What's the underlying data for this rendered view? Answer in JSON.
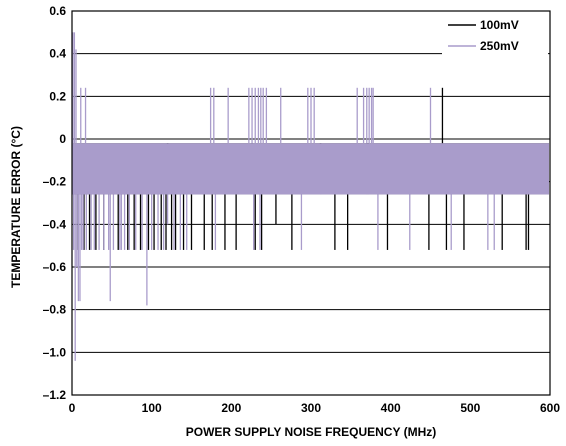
{
  "chart_data": {
    "type": "line",
    "xlabel": "POWER SUPPLY NOISE FREQUENCY (MHz)",
    "ylabel": "TEMPERATURE ERROR (°C)",
    "xlim": [
      0,
      600
    ],
    "ylim": [
      -1.2,
      0.6
    ],
    "xticks": [
      0,
      100,
      200,
      300,
      400,
      500,
      600
    ],
    "xtick_labels": [
      "0",
      "100",
      "200",
      "300",
      "400",
      "500",
      "600"
    ],
    "yticks": [
      0.6,
      0.4,
      0.2,
      0,
      -0.2,
      -0.4,
      -0.6,
      -0.8,
      -1.0,
      -1.2
    ],
    "ytick_labels": [
      "0.6",
      "0.4",
      "0.2",
      "0",
      "–0.2",
      "–0.4",
      "–0.6",
      "–0.8",
      "–1.0",
      "–1.2"
    ],
    "grid": "horizontal",
    "legend_position": "top-right",
    "band": {
      "upper": -0.02,
      "lower": -0.26,
      "x_start": 0,
      "x_end": 600
    },
    "series": [
      {
        "name": "100mV",
        "color": "#000000",
        "spikes_down": [
          {
            "x": 8,
            "y": -0.52
          },
          {
            "x": 15,
            "y": -0.52
          },
          {
            "x": 22,
            "y": -0.52
          },
          {
            "x": 30,
            "y": -0.52
          },
          {
            "x": 40,
            "y": -0.52
          },
          {
            "x": 58,
            "y": -0.52
          },
          {
            "x": 70,
            "y": -0.52
          },
          {
            "x": 78,
            "y": -0.52
          },
          {
            "x": 86,
            "y": -0.52
          },
          {
            "x": 96,
            "y": -0.52
          },
          {
            "x": 103,
            "y": -0.52
          },
          {
            "x": 112,
            "y": -0.52
          },
          {
            "x": 118,
            "y": -0.52
          },
          {
            "x": 125,
            "y": -0.52
          },
          {
            "x": 130,
            "y": -0.52
          },
          {
            "x": 140,
            "y": -0.52
          },
          {
            "x": 150,
            "y": -0.52
          },
          {
            "x": 166,
            "y": -0.52
          },
          {
            "x": 176,
            "y": -0.52
          },
          {
            "x": 192,
            "y": -0.52
          },
          {
            "x": 206,
            "y": -0.52
          },
          {
            "x": 230,
            "y": -0.52
          },
          {
            "x": 238,
            "y": -0.52
          },
          {
            "x": 256,
            "y": -0.4
          },
          {
            "x": 276,
            "y": -0.52
          },
          {
            "x": 330,
            "y": -0.52
          },
          {
            "x": 346,
            "y": -0.52
          },
          {
            "x": 396,
            "y": -0.52
          },
          {
            "x": 448,
            "y": -0.52
          },
          {
            "x": 470,
            "y": -0.52
          },
          {
            "x": 492,
            "y": -0.52
          },
          {
            "x": 540,
            "y": -0.52
          },
          {
            "x": 570,
            "y": -0.52
          },
          {
            "x": 573,
            "y": -0.52
          }
        ],
        "spikes_up": [
          {
            "x": 465,
            "y": 0.24
          }
        ]
      },
      {
        "name": "250mV",
        "color": "#A99CCB",
        "spikes_down": [
          {
            "x": 2,
            "y": -0.52
          },
          {
            "x": 4,
            "y": -1.04
          },
          {
            "x": 6,
            "y": -0.6
          },
          {
            "x": 8,
            "y": -0.76
          },
          {
            "x": 10,
            "y": -0.76
          },
          {
            "x": 12,
            "y": -0.52
          },
          {
            "x": 14,
            "y": -0.52
          },
          {
            "x": 18,
            "y": -0.52
          },
          {
            "x": 24,
            "y": -0.52
          },
          {
            "x": 28,
            "y": -0.52
          },
          {
            "x": 34,
            "y": -0.52
          },
          {
            "x": 40,
            "y": -0.52
          },
          {
            "x": 46,
            "y": -0.52
          },
          {
            "x": 48,
            "y": -0.76
          },
          {
            "x": 52,
            "y": -0.52
          },
          {
            "x": 60,
            "y": -0.52
          },
          {
            "x": 62,
            "y": -0.52
          },
          {
            "x": 66,
            "y": -0.52
          },
          {
            "x": 72,
            "y": -0.52
          },
          {
            "x": 80,
            "y": -0.52
          },
          {
            "x": 88,
            "y": -0.52
          },
          {
            "x": 94,
            "y": -0.78
          },
          {
            "x": 100,
            "y": -0.52
          },
          {
            "x": 108,
            "y": -0.52
          },
          {
            "x": 115,
            "y": -0.52
          },
          {
            "x": 120,
            "y": -0.4
          },
          {
            "x": 128,
            "y": -0.52
          },
          {
            "x": 136,
            "y": -0.52
          },
          {
            "x": 144,
            "y": -0.52
          },
          {
            "x": 180,
            "y": -0.52
          },
          {
            "x": 228,
            "y": -0.52
          },
          {
            "x": 236,
            "y": -0.52
          },
          {
            "x": 288,
            "y": -0.52
          },
          {
            "x": 384,
            "y": -0.52
          },
          {
            "x": 424,
            "y": -0.52
          },
          {
            "x": 476,
            "y": -0.52
          },
          {
            "x": 522,
            "y": -0.52
          },
          {
            "x": 530,
            "y": -0.52
          }
        ],
        "spikes_up": [
          {
            "x": 1,
            "y": 0.5
          },
          {
            "x": 3,
            "y": 0.5
          },
          {
            "x": 5,
            "y": 0.42
          },
          {
            "x": 11,
            "y": 0.24
          },
          {
            "x": 17,
            "y": 0.24
          },
          {
            "x": 174,
            "y": 0.24
          },
          {
            "x": 178,
            "y": 0.24
          },
          {
            "x": 196,
            "y": 0.24
          },
          {
            "x": 222,
            "y": 0.24
          },
          {
            "x": 226,
            "y": 0.24
          },
          {
            "x": 230,
            "y": 0.24
          },
          {
            "x": 234,
            "y": 0.24
          },
          {
            "x": 237,
            "y": 0.24
          },
          {
            "x": 240,
            "y": 0.24
          },
          {
            "x": 244,
            "y": 0.24
          },
          {
            "x": 262,
            "y": 0.24
          },
          {
            "x": 296,
            "y": 0.24
          },
          {
            "x": 300,
            "y": 0.24
          },
          {
            "x": 304,
            "y": 0.24
          },
          {
            "x": 358,
            "y": 0.24
          },
          {
            "x": 366,
            "y": 0.24
          },
          {
            "x": 370,
            "y": 0.24
          },
          {
            "x": 373,
            "y": 0.24
          },
          {
            "x": 376,
            "y": 0.24
          },
          {
            "x": 378,
            "y": 0.24
          },
          {
            "x": 450,
            "y": 0.24
          }
        ]
      }
    ]
  }
}
